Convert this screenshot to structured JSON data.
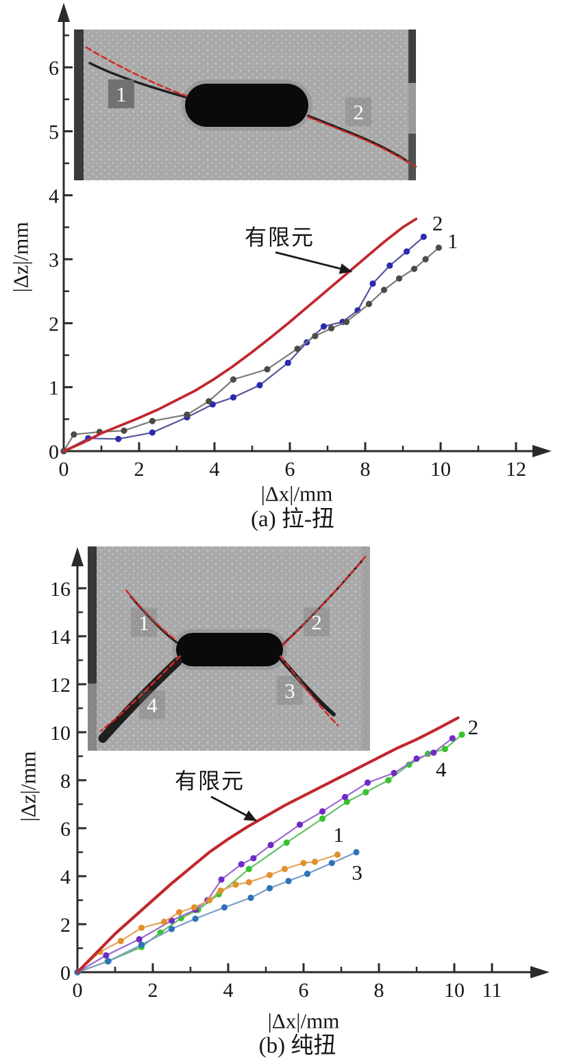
{
  "figure_caption_a": "(a) 拉-扭",
  "figure_caption_b": "(b) 纯扭",
  "colors": {
    "axis": "#2b2b2b",
    "fem_red": "#c1272d",
    "navy_blue": "#2a2ab2",
    "dark_gray": "#4c4c46",
    "green": "#35c42c",
    "purple": "#6f2bc4",
    "orange": "#e0912e",
    "medium_blue": "#2f72ba",
    "crack_overlay_red": "#d62828",
    "inset_label_white": "#ffffff"
  },
  "chart_data": [
    {
      "id": "a",
      "type": "line",
      "title": "(a) 拉-扭",
      "xlabel": "|Δx|/mm",
      "ylabel": "|Δz|/mm",
      "xlim": [
        0,
        12.6
      ],
      "ylim": [
        0,
        6.9
      ],
      "grid": false,
      "legend_position": "none",
      "x_major_ticks": [
        0,
        2,
        4,
        6,
        8,
        10,
        12
      ],
      "x_minor_ticks": [
        1,
        3,
        5,
        7,
        9,
        11
      ],
      "y_major_ticks": [
        0,
        1,
        2,
        3,
        4,
        5,
        6
      ],
      "y_minor_ticks": [
        0.5,
        1.5,
        2.5,
        3.5,
        4.5,
        5.5,
        6.5
      ],
      "annotation": {
        "text": "有限元",
        "points_to": "FEM curve"
      },
      "series": [
        {
          "name": "有限元",
          "role": "fem-curve",
          "color": "#c1272d",
          "line_color": "#c1272d",
          "marker": false,
          "label_at": null,
          "points": [
            [
              0,
              0
            ],
            [
              0.5,
              0.13
            ],
            [
              1,
              0.28
            ],
            [
              1.5,
              0.4
            ],
            [
              2,
              0.52
            ],
            [
              2.5,
              0.65
            ],
            [
              3,
              0.8
            ],
            [
              3.5,
              0.95
            ],
            [
              4,
              1.13
            ],
            [
              4.5,
              1.33
            ],
            [
              5,
              1.55
            ],
            [
              5.5,
              1.78
            ],
            [
              6,
              2.02
            ],
            [
              6.5,
              2.27
            ],
            [
              7,
              2.52
            ],
            [
              7.5,
              2.77
            ],
            [
              8,
              3.02
            ],
            [
              8.5,
              3.27
            ],
            [
              9,
              3.5
            ],
            [
              9.35,
              3.63
            ]
          ]
        },
        {
          "name": "2",
          "role": "experiment-crack-2",
          "color": "#2a2ab2",
          "line_color": "#55559b",
          "marker": true,
          "label_at": [
            9.92,
            3.56
          ],
          "points": [
            [
              0,
              0
            ],
            [
              0.65,
              0.2
            ],
            [
              1.45,
              0.19
            ],
            [
              2.35,
              0.29
            ],
            [
              3.27,
              0.53
            ],
            [
              3.95,
              0.73
            ],
            [
              4.5,
              0.84
            ],
            [
              5.2,
              1.03
            ],
            [
              5.95,
              1.38
            ],
            [
              6.45,
              1.7
            ],
            [
              6.9,
              1.95
            ],
            [
              7.4,
              2.02
            ],
            [
              7.8,
              2.2
            ],
            [
              8.2,
              2.62
            ],
            [
              8.65,
              2.9
            ],
            [
              9.1,
              3.12
            ],
            [
              9.55,
              3.35
            ]
          ]
        },
        {
          "name": "1",
          "role": "experiment-crack-1",
          "color": "#4c4c46",
          "line_color": "#7b7b74",
          "marker": true,
          "label_at": [
            10.32,
            3.28
          ],
          "points": [
            [
              0,
              0
            ],
            [
              0.27,
              0.26
            ],
            [
              0.95,
              0.3
            ],
            [
              1.6,
              0.32
            ],
            [
              2.35,
              0.47
            ],
            [
              3.27,
              0.57
            ],
            [
              3.85,
              0.78
            ],
            [
              4.5,
              1.12
            ],
            [
              5.4,
              1.28
            ],
            [
              6.2,
              1.6
            ],
            [
              6.67,
              1.8
            ],
            [
              7.1,
              1.92
            ],
            [
              7.5,
              2.02
            ],
            [
              8.1,
              2.3
            ],
            [
              8.5,
              2.52
            ],
            [
              8.9,
              2.7
            ],
            [
              9.3,
              2.85
            ],
            [
              9.6,
              3.0
            ],
            [
              9.95,
              3.18
            ]
          ]
        }
      ],
      "inset": {
        "description": "grayscale specimen photo with central horizontal slot and two cracks marked by red dashed curves",
        "labels": [
          {
            "text": "1",
            "fx": 0.138,
            "fy": 0.427
          },
          {
            "text": "2",
            "fx": 0.832,
            "fy": 0.545
          }
        ]
      }
    },
    {
      "id": "b",
      "type": "line",
      "title": "(b) 纯扭",
      "xlabel": "|Δx|/mm",
      "ylabel": "|Δz|/mm",
      "xlim": [
        0,
        12.5
      ],
      "ylim": [
        0,
        17.6
      ],
      "grid": false,
      "legend_position": "none",
      "x_major_ticks": [
        0,
        2,
        4,
        6,
        8,
        10,
        11
      ],
      "x_minor_ticks": [
        1,
        3,
        5,
        7,
        9
      ],
      "y_major_ticks": [
        0,
        2,
        4,
        6,
        8,
        10,
        12,
        14,
        16
      ],
      "y_minor_ticks": [
        1,
        3,
        5,
        7,
        9,
        11,
        13,
        15,
        17
      ],
      "annotation": {
        "text": "有限元",
        "points_to": "FEM curve"
      },
      "series": [
        {
          "name": "有限元",
          "role": "fem-curve",
          "color": "#c1272d",
          "line_color": "#c1272d",
          "marker": false,
          "label_at": null,
          "points": [
            [
              0,
              0
            ],
            [
              0.5,
              0.8
            ],
            [
              1,
              1.6
            ],
            [
              1.5,
              2.3
            ],
            [
              2,
              3.0
            ],
            [
              2.5,
              3.7
            ],
            [
              3,
              4.35
            ],
            [
              3.5,
              5.0
            ],
            [
              4,
              5.55
            ],
            [
              4.5,
              6.05
            ],
            [
              5,
              6.5
            ],
            [
              5.5,
              6.95
            ],
            [
              6,
              7.35
            ],
            [
              6.5,
              7.75
            ],
            [
              7,
              8.15
            ],
            [
              7.5,
              8.55
            ],
            [
              8,
              8.95
            ],
            [
              8.5,
              9.35
            ],
            [
              9,
              9.7
            ],
            [
              9.5,
              10.1
            ],
            [
              10.1,
              10.6
            ]
          ]
        },
        {
          "name": "2",
          "role": "experiment-crack-2",
          "color": "#35c42c",
          "line_color": "#63bf63",
          "marker": true,
          "label_at": [
            10.5,
            10.2
          ],
          "points": [
            [
              0,
              0
            ],
            [
              0.8,
              0.45
            ],
            [
              1.7,
              1.05
            ],
            [
              2.2,
              1.65
            ],
            [
              2.75,
              2.25
            ],
            [
              3.2,
              2.6
            ],
            [
              3.75,
              3.25
            ],
            [
              4.55,
              4.3
            ],
            [
              5.55,
              5.4
            ],
            [
              6.5,
              6.4
            ],
            [
              7.15,
              7.1
            ],
            [
              7.65,
              7.5
            ],
            [
              8.25,
              8.0
            ],
            [
              8.8,
              8.65
            ],
            [
              9.3,
              9.1
            ],
            [
              9.75,
              9.3
            ],
            [
              10.2,
              9.9
            ]
          ]
        },
        {
          "name": "4",
          "role": "experiment-crack-4",
          "color": "#6f2bc4",
          "line_color": "#9a6ad0",
          "marker": true,
          "label_at": [
            9.65,
            8.45
          ],
          "points": [
            [
              0,
              0
            ],
            [
              0.76,
              0.7
            ],
            [
              1.64,
              1.37
            ],
            [
              2.5,
              2.15
            ],
            [
              3.13,
              2.6
            ],
            [
              3.45,
              3.0
            ],
            [
              3.82,
              3.86
            ],
            [
              4.35,
              4.5
            ],
            [
              4.67,
              4.75
            ],
            [
              5.13,
              5.3
            ],
            [
              5.9,
              6.15
            ],
            [
              6.5,
              6.7
            ],
            [
              7.1,
              7.3
            ],
            [
              7.7,
              7.9
            ],
            [
              8.4,
              8.3
            ],
            [
              9.0,
              8.9
            ],
            [
              9.45,
              9.15
            ],
            [
              9.95,
              9.75
            ]
          ]
        },
        {
          "name": "1",
          "role": "experiment-crack-1",
          "color": "#e0912e",
          "line_color": "#e3a45c",
          "marker": true,
          "label_at": [
            6.93,
            5.71
          ],
          "points": [
            [
              0,
              0
            ],
            [
              0.6,
              0.85
            ],
            [
              1.15,
              1.3
            ],
            [
              1.7,
              1.85
            ],
            [
              2.3,
              2.1
            ],
            [
              2.7,
              2.5
            ],
            [
              3.1,
              2.7
            ],
            [
              3.5,
              3.0
            ],
            [
              3.8,
              3.4
            ],
            [
              4.2,
              3.65
            ],
            [
              4.55,
              3.75
            ],
            [
              5.1,
              4.05
            ],
            [
              5.5,
              4.3
            ],
            [
              6.0,
              4.55
            ],
            [
              6.3,
              4.6
            ],
            [
              6.9,
              4.9
            ]
          ]
        },
        {
          "name": "3",
          "role": "experiment-crack-3",
          "color": "#2f72ba",
          "line_color": "#7b9cc4",
          "marker": true,
          "label_at": [
            7.42,
            4.15
          ],
          "points": [
            [
              0,
              0
            ],
            [
              0.82,
              0.46
            ],
            [
              1.7,
              1.14
            ],
            [
              2.5,
              1.8
            ],
            [
              3.13,
              2.23
            ],
            [
              3.9,
              2.7
            ],
            [
              4.6,
              3.1
            ],
            [
              5.1,
              3.5
            ],
            [
              5.6,
              3.8
            ],
            [
              6.1,
              4.1
            ],
            [
              6.75,
              4.55
            ],
            [
              7.4,
              5.0
            ]
          ]
        }
      ],
      "inset": {
        "description": "grayscale specimen photo with central horizontal slot and four cracks marked by red dashed curves",
        "labels": [
          {
            "text": "1",
            "fx": 0.199,
            "fy": 0.372
          },
          {
            "text": "2",
            "fx": 0.811,
            "fy": 0.369
          },
          {
            "text": "3",
            "fx": 0.716,
            "fy": 0.705
          },
          {
            "text": "4",
            "fx": 0.228,
            "fy": 0.775
          }
        ]
      }
    }
  ]
}
